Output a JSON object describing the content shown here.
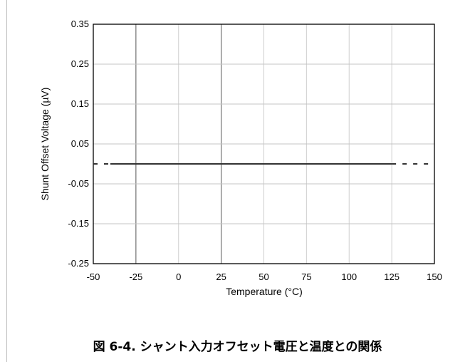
{
  "chart_data": {
    "type": "line",
    "xlabel": "Temperature (°C)",
    "ylabel": "Shunt Offset Voltage (µV)",
    "xlim": [
      -50,
      150
    ],
    "ylim": [
      -0.25,
      0.35
    ],
    "xticks": [
      -50,
      -25,
      0,
      25,
      50,
      75,
      100,
      125,
      150
    ],
    "yticks": [
      0.35,
      0.25,
      0.15,
      0.05,
      -0.05,
      -0.15,
      -0.25
    ],
    "xtick_labels": [
      "-50",
      "-25",
      "0",
      "25",
      "50",
      "75",
      "100",
      "125",
      "150"
    ],
    "ytick_labels": [
      "0.35",
      "0.25",
      "0.15",
      "0.05",
      "-0.05",
      "-0.15",
      "-0.25"
    ],
    "grid": true,
    "series": [
      {
        "x": [
          -40,
          125
        ],
        "y": [
          0,
          0
        ],
        "style": "solid",
        "color": "#333333"
      },
      {
        "x": [
          -50,
          -40
        ],
        "y": [
          0,
          0
        ],
        "style": "dashed",
        "color": "#333333"
      },
      {
        "x": [
          125,
          150
        ],
        "y": [
          0,
          0
        ],
        "style": "dashed",
        "color": "#333333"
      }
    ]
  },
  "caption": "図 6-4. シャント入力オフセット電圧と温度との関係"
}
